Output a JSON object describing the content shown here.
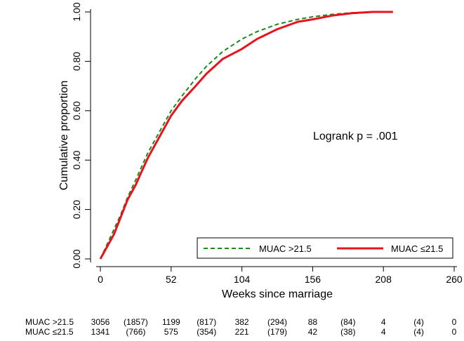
{
  "chart_data": {
    "type": "line",
    "title": "",
    "xlabel": "Weeks since marriage",
    "ylabel": "Cumulative proportion",
    "xlim": [
      0,
      260
    ],
    "ylim": [
      0,
      1
    ],
    "x_ticks": [
      "0",
      "52",
      "104",
      "156",
      "208",
      "260"
    ],
    "y_ticks": [
      "0.00",
      "0.20",
      "0.40",
      "0.60",
      "0.80",
      "1.00"
    ],
    "grid": false,
    "legend_position": "bottom-right",
    "annotation": "Logrank p = .001",
    "series": [
      {
        "name": "MUAC >21.5",
        "color": "#1a8a1a",
        "style": "dashed",
        "x": [
          0,
          5,
          10,
          15,
          20,
          26,
          30,
          35,
          40,
          45,
          52,
          60,
          70,
          78,
          90,
          104,
          115,
          130,
          145,
          156,
          170,
          185,
          200,
          215
        ],
        "y": [
          0.0,
          0.06,
          0.12,
          0.18,
          0.25,
          0.32,
          0.37,
          0.43,
          0.48,
          0.53,
          0.6,
          0.66,
          0.73,
          0.78,
          0.84,
          0.89,
          0.92,
          0.95,
          0.97,
          0.98,
          0.99,
          0.997,
          1.0,
          1.0
        ]
      },
      {
        "name": "MUAC ≤21.5",
        "color": "#e8131c",
        "style": "solid",
        "x": [
          0,
          5,
          10,
          15,
          20,
          26,
          30,
          35,
          40,
          45,
          52,
          60,
          70,
          78,
          90,
          104,
          115,
          130,
          145,
          156,
          170,
          185,
          200,
          215
        ],
        "y": [
          0.0,
          0.05,
          0.1,
          0.17,
          0.24,
          0.3,
          0.35,
          0.41,
          0.46,
          0.51,
          0.58,
          0.64,
          0.7,
          0.75,
          0.81,
          0.85,
          0.89,
          0.93,
          0.96,
          0.97,
          0.985,
          0.995,
          1.0,
          1.0
        ]
      }
    ],
    "risk_table": {
      "columns": [
        "0",
        "52",
        "104",
        "156",
        "208",
        "260"
      ],
      "rows": [
        {
          "label": "MUAC >21.5",
          "at_risk": [
            "3056",
            "1199",
            "382",
            "88",
            "4",
            "0"
          ],
          "events": [
            "(1857)",
            "(817)",
            "(294)",
            "(84)",
            "(4)"
          ]
        },
        {
          "label": "MUAC ≤21.5",
          "at_risk": [
            "1341",
            "575",
            "221",
            "42",
            "4",
            "0"
          ],
          "events": [
            "(766)",
            "(354)",
            "(179)",
            "(38)",
            "(4)"
          ]
        }
      ]
    }
  }
}
